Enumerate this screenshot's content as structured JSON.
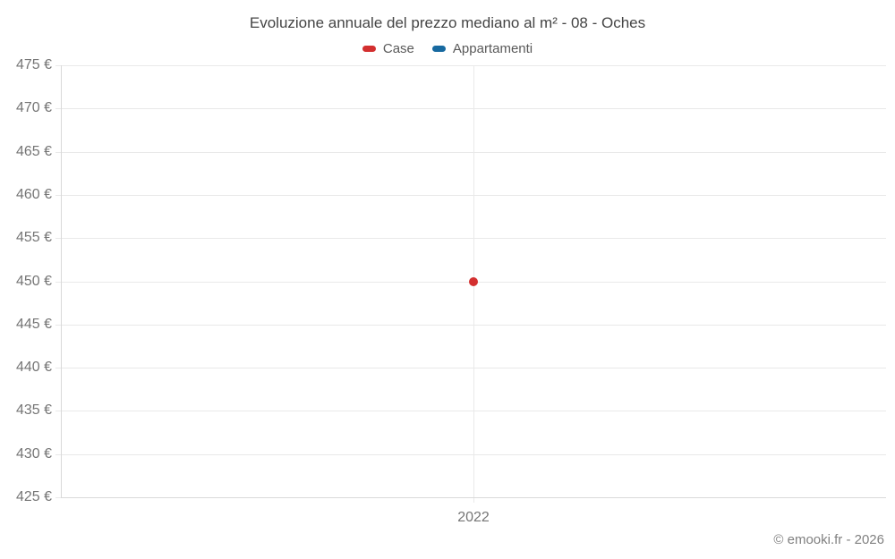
{
  "title": "Evoluzione annuale del prezzo mediano al m² - 08 - Oches",
  "legend": {
    "items": [
      {
        "label": "Case",
        "color": "#d32f2f"
      },
      {
        "label": "Appartamenti",
        "color": "#1769a0"
      }
    ]
  },
  "footer": {
    "credit": "© emooki.fr - 2026"
  },
  "chart_data": {
    "type": "line",
    "title": "Evoluzione annuale del prezzo mediano al m² - 08 - Oches",
    "categories": [
      "2022"
    ],
    "series": [
      {
        "name": "Case",
        "color": "#d32f2f",
        "values": [
          450
        ]
      },
      {
        "name": "Appartamenti",
        "color": "#1769a0",
        "values": [
          null
        ]
      }
    ],
    "xlabel": "",
    "ylabel": "",
    "ylim": [
      425,
      475
    ],
    "ytick_step": 5,
    "ytick_suffix": " €",
    "grid": true,
    "legend_position": "top"
  }
}
